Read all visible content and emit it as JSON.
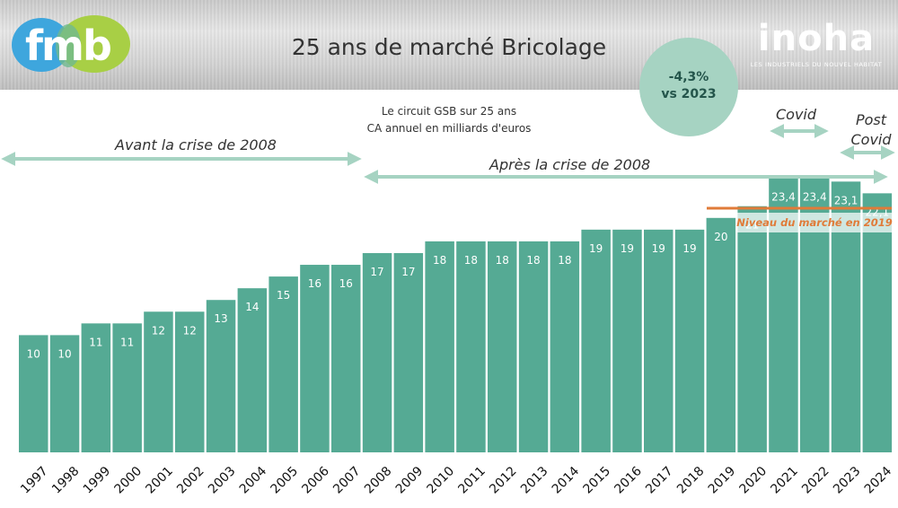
{
  "header": {
    "title": "25 ans de marché Bricolage",
    "logo_left": "fmb",
    "logo_right": "inoha",
    "logo_right_tagline": "LES INDUSTRIELS DU NOUVEL HABITAT"
  },
  "badge": {
    "line1": "-4,3%",
    "line2": "vs 2023"
  },
  "subtitle": {
    "line1": "Le circuit GSB sur 25 ans",
    "line2": "CA annuel en milliards d'euros"
  },
  "periods": {
    "before": "Avant la crise de 2008",
    "after": "Après la crise de 2008",
    "covid": "Covid",
    "post_covid_line1": "Post",
    "post_covid_line2": "Covid"
  },
  "reference_line": {
    "label": "Niveau du marché en 2019",
    "value": 20,
    "color": "#e07b39"
  },
  "colors": {
    "bar": "#55aa94",
    "arrow": "#a6d3c2",
    "badge": "#a6d3c2"
  },
  "chart_data": {
    "type": "bar",
    "categories": [
      "1997",
      "1998",
      "1999",
      "2000",
      "2001",
      "2002",
      "2003",
      "2004",
      "2005",
      "2006",
      "2007",
      "2008",
      "2009",
      "2010",
      "2011",
      "2012",
      "2013",
      "2014",
      "2015",
      "2016",
      "2017",
      "2018",
      "2019",
      "2020",
      "2021",
      "2022",
      "2023",
      "2024"
    ],
    "values": [
      10,
      10,
      11,
      11,
      12,
      12,
      13,
      14,
      15,
      16,
      16,
      17,
      17,
      18,
      18,
      18,
      18,
      18,
      19,
      19,
      19,
      19,
      20,
      21,
      23.4,
      23.4,
      23.1,
      22.1
    ],
    "labels": [
      "10",
      "10",
      "11",
      "11",
      "12",
      "12",
      "13",
      "14",
      "15",
      "16",
      "16",
      "17",
      "17",
      "18",
      "18",
      "18",
      "18",
      "18",
      "19",
      "19",
      "19",
      "19",
      "20",
      "21",
      "23,4",
      "23,4",
      "23,1",
      "22,1"
    ],
    "title": "25 ans de marché Bricolage",
    "ylabel": "CA annuel en milliards d'euros",
    "grid": false,
    "legend": "none"
  }
}
